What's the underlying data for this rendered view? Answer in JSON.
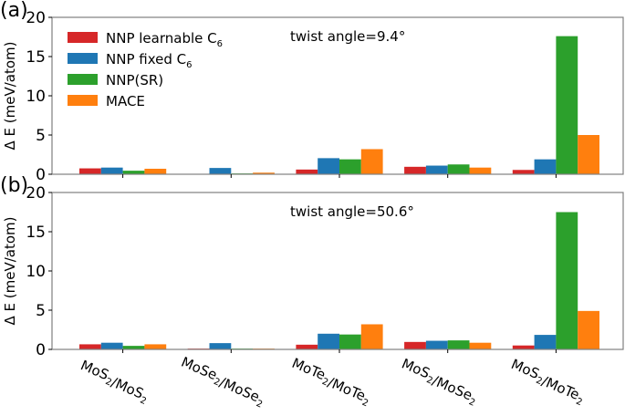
{
  "figure": {
    "panel_labels": [
      "(a)",
      "(b)"
    ],
    "ylabel": "Δ E (meV/atom)"
  },
  "legend": [
    {
      "label": "NNP learnable C",
      "sub": "6",
      "color": "#d62728"
    },
    {
      "label": "NNP fixed C",
      "sub": "6",
      "color": "#1f77b4"
    },
    {
      "label": "NNP(SR)",
      "sub": "",
      "color": "#2ca02c"
    },
    {
      "label": "MACE",
      "sub": "",
      "color": "#ff7f0e"
    }
  ],
  "chart_data": [
    {
      "type": "bar",
      "panel": "(a)",
      "title": "",
      "annotation": "twist angle=9.4°",
      "xlabel": "",
      "ylabel": "Δ E (meV/atom)",
      "ylim": [
        0,
        20
      ],
      "yticks": [
        0,
        5,
        10,
        15,
        20
      ],
      "grid": false,
      "legend_position": "upper left",
      "categories": [
        "MoS2/MoS2",
        "MoSe2/MoSe2",
        "MoTe2/MoTe2",
        "MoS2/MoSe2",
        "MoS2/MoTe2"
      ],
      "series": [
        {
          "name": "NNP learnable C6",
          "color": "#d62728",
          "values": [
            0.75,
            0.05,
            0.6,
            0.95,
            0.55
          ]
        },
        {
          "name": "NNP fixed C6",
          "color": "#1f77b4",
          "values": [
            0.85,
            0.8,
            2.05,
            1.1,
            1.9
          ]
        },
        {
          "name": "NNP(SR)",
          "color": "#2ca02c",
          "values": [
            0.45,
            0.1,
            1.9,
            1.25,
            17.6
          ]
        },
        {
          "name": "MACE",
          "color": "#ff7f0e",
          "values": [
            0.7,
            0.2,
            3.2,
            0.85,
            5.0
          ]
        }
      ]
    },
    {
      "type": "bar",
      "panel": "(b)",
      "title": "",
      "annotation": "twist angle=50.6°",
      "xlabel": "",
      "ylabel": "Δ E (meV/atom)",
      "ylim": [
        0,
        20
      ],
      "yticks": [
        0,
        5,
        10,
        15,
        20
      ],
      "grid": false,
      "categories": [
        "MoS2/MoS2",
        "MoSe2/MoSe2",
        "MoTe2/MoTe2",
        "MoS2/MoSe2",
        "MoS2/MoTe2"
      ],
      "series": [
        {
          "name": "NNP learnable C6",
          "color": "#d62728",
          "values": [
            0.65,
            0.1,
            0.6,
            0.95,
            0.5
          ]
        },
        {
          "name": "NNP fixed C6",
          "color": "#1f77b4",
          "values": [
            0.85,
            0.8,
            2.0,
            1.1,
            1.85
          ]
        },
        {
          "name": "NNP(SR)",
          "color": "#2ca02c",
          "values": [
            0.45,
            0.1,
            1.9,
            1.15,
            17.5
          ]
        },
        {
          "name": "MACE",
          "color": "#ff7f0e",
          "values": [
            0.65,
            0.1,
            3.2,
            0.85,
            4.9
          ]
        }
      ]
    }
  ],
  "xtick_labels": [
    [
      {
        "t": "MoS"
      },
      {
        "s": "2"
      },
      {
        "t": "/MoS"
      },
      {
        "s": "2"
      }
    ],
    [
      {
        "t": "MoSe"
      },
      {
        "s": "2"
      },
      {
        "t": "/MoSe"
      },
      {
        "s": "2"
      }
    ],
    [
      {
        "t": "MoTe"
      },
      {
        "s": "2"
      },
      {
        "t": "/MoTe"
      },
      {
        "s": "2"
      }
    ],
    [
      {
        "t": "MoS"
      },
      {
        "s": "2"
      },
      {
        "t": "/MoSe"
      },
      {
        "s": "2"
      }
    ],
    [
      {
        "t": "MoS"
      },
      {
        "s": "2"
      },
      {
        "t": "/MoTe"
      },
      {
        "s": "2"
      }
    ]
  ]
}
